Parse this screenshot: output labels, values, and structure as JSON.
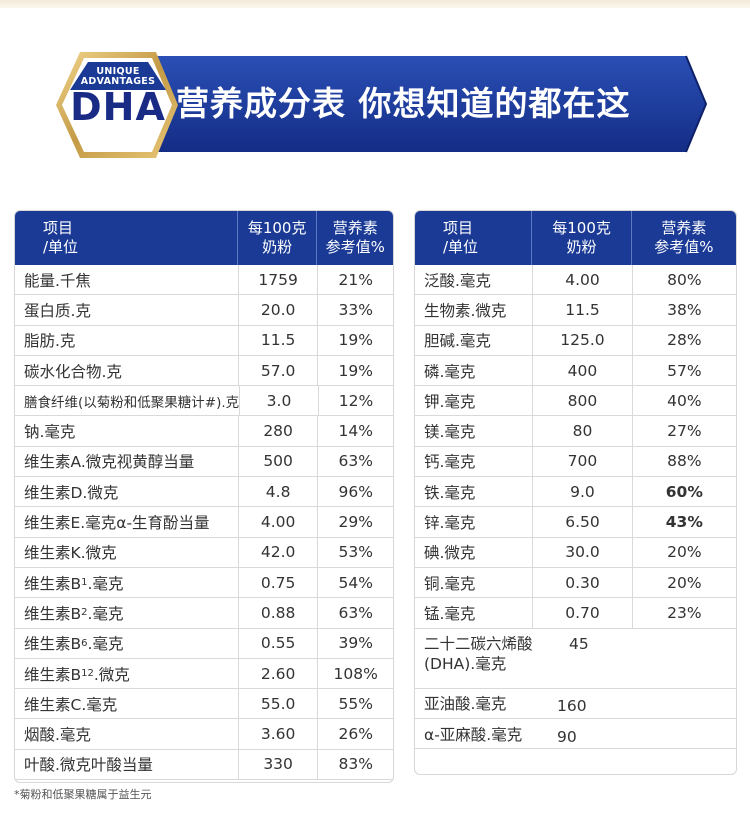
{
  "banner": {
    "badge_line1": "UNIQUE",
    "badge_line2": "ADVANTAGES",
    "badge_brand": "DHA",
    "title": "营养成分表  你想知道的都在这",
    "colors": {
      "banner": "#1b3a9a",
      "gold": "#c9a04c",
      "header": "#1a3a96"
    }
  },
  "left_table": {
    "headers": {
      "item": [
        "项目",
        "/单位"
      ],
      "value": [
        "每100克",
        "奶粉"
      ],
      "nrv": [
        "营养素",
        "参考值%"
      ]
    },
    "rows": [
      {
        "name": "能量.千焦",
        "value": "1759",
        "nrv": "21%"
      },
      {
        "name": "蛋白质.克",
        "value": "20.0",
        "nrv": "33%"
      },
      {
        "name": "脂肪.克",
        "value": "11.5",
        "nrv": "19%"
      },
      {
        "name": "碳水化合物.克",
        "value": "57.0",
        "nrv": "19%"
      },
      {
        "name": "膳食纤维(以菊粉和低聚果糖计#).克",
        "value": "3.0",
        "nrv": "12%"
      },
      {
        "name": "钠.毫克",
        "value": "280",
        "nrv": "14%"
      },
      {
        "name": "维生素A.微克视黄醇当量",
        "value": "500",
        "nrv": "63%"
      },
      {
        "name": "维生素D.微克",
        "value": "4.8",
        "nrv": "96%"
      },
      {
        "name": "维生素E.毫克α-生育酚当量",
        "value": "4.00",
        "nrv": "29%"
      },
      {
        "name": "维生素K.微克",
        "value": "42.0",
        "nrv": "53%"
      },
      {
        "name_main": "维生素B",
        "name_sub": "1",
        "name_tail": ".毫克",
        "value": "0.75",
        "nrv": "54%"
      },
      {
        "name_main": "维生素B",
        "name_sub": "2",
        "name_tail": ".毫克",
        "value": "0.88",
        "nrv": "63%"
      },
      {
        "name_main": "维生素B",
        "name_sub": "6",
        "name_tail": ".毫克",
        "value": "0.55",
        "nrv": "39%"
      },
      {
        "name_main": "维生素B",
        "name_sub": "12",
        "name_tail": ".微克",
        "value": "2.60",
        "nrv": "108%"
      },
      {
        "name": "维生素C.毫克",
        "value": "55.0",
        "nrv": "55%"
      },
      {
        "name": "烟酸.毫克",
        "value": "3.60",
        "nrv": "26%"
      },
      {
        "name": "叶酸.微克叶酸当量",
        "value": "330",
        "nrv": "83%"
      }
    ]
  },
  "right_table": {
    "headers": {
      "item": [
        "项目",
        "/单位"
      ],
      "value": [
        "每100克",
        "奶粉"
      ],
      "nrv": [
        "营养素",
        "参考值%"
      ]
    },
    "rows": [
      {
        "name": "泛酸.毫克",
        "value": "4.00",
        "nrv": "80%"
      },
      {
        "name": "生物素.微克",
        "value": "11.5",
        "nrv": "38%"
      },
      {
        "name": "胆碱.毫克",
        "value": "125.0",
        "nrv": "28%"
      },
      {
        "name": "磷.毫克",
        "value": "400",
        "nrv": "57%"
      },
      {
        "name": "钾.毫克",
        "value": "800",
        "nrv": "40%"
      },
      {
        "name": "镁.毫克",
        "value": "80",
        "nrv": "27%"
      },
      {
        "name": "钙.毫克",
        "value": "700",
        "nrv": "88%"
      },
      {
        "name": "铁.毫克",
        "value": "9.0",
        "nrv": "60%"
      },
      {
        "name": "锌.毫克",
        "value": "6.50",
        "nrv": "43%"
      },
      {
        "name": "碘.微克",
        "value": "30.0",
        "nrv": "20%"
      },
      {
        "name": "铜.毫克",
        "value": "0.30",
        "nrv": "20%"
      },
      {
        "name": "锰.毫克",
        "value": "0.70",
        "nrv": "23%"
      }
    ],
    "extra_rows": [
      {
        "name_line1": "二十二碳六烯酸",
        "name_line2": "(DHA).毫克",
        "value": "45"
      },
      {
        "name": "亚油酸.毫克",
        "value": "160"
      },
      {
        "name": "α-亚麻酸.毫克",
        "value": "90"
      }
    ]
  },
  "footnote": "*菊粉和低聚果糖属于益生元"
}
